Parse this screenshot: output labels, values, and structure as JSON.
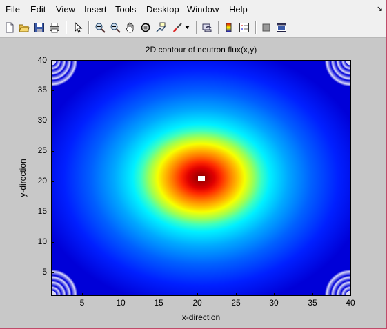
{
  "menubar": {
    "items": [
      "File",
      "Edit",
      "View",
      "Insert",
      "Tools",
      "Desktop",
      "Window",
      "Help"
    ]
  },
  "toolbar": {
    "icons": [
      "new-figure-icon",
      "open-file-icon",
      "save-icon",
      "print-icon",
      "pointer-icon",
      "zoom-in-icon",
      "zoom-out-icon",
      "pan-icon",
      "rotate-3d-icon",
      "data-cursor-icon",
      "brush-icon",
      "link-plot-icon",
      "colorbar-icon",
      "legend-icon",
      "hide-plot-tools-icon",
      "show-plot-tools-icon"
    ]
  },
  "plot": {
    "title": "2D contour of neutron flux(x,y)",
    "xlabel": "x-direction",
    "ylabel": "y-direction",
    "xticks": [
      "5",
      "10",
      "15",
      "20",
      "25",
      "30",
      "35",
      "40"
    ],
    "yticks": [
      "5",
      "10",
      "15",
      "20",
      "25",
      "30",
      "35",
      "40"
    ]
  },
  "chart_data": {
    "type": "heatmap",
    "title": "2D contour of neutron flux(x,y)",
    "xlabel": "x-direction",
    "ylabel": "y-direction",
    "xlim": [
      1,
      40
    ],
    "ylim": [
      1,
      40
    ],
    "peak": {
      "x": 20.5,
      "y": 20.5
    },
    "colormap": "jet"
  }
}
